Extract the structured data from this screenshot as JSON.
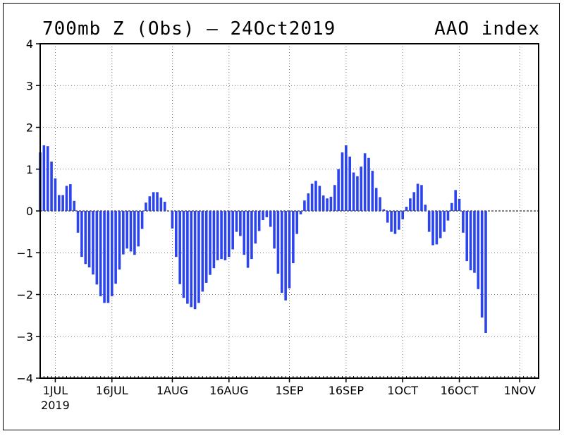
{
  "chart_data": {
    "type": "bar",
    "title": "700mb Z (Obs) — 24Oct2019",
    "subtitle": "AAO index",
    "xlabel": "",
    "ylabel": "",
    "ylim": [
      -4,
      4
    ],
    "yticks": [
      "−4",
      "−3",
      "−2",
      "−1",
      "0",
      "1",
      "2",
      "3",
      "4"
    ],
    "xticks": [
      {
        "date": "2019-07-01",
        "label": "1JUL"
      },
      {
        "date": "2019-07-16",
        "label": "16JUL"
      },
      {
        "date": "2019-08-01",
        "label": "1AUG"
      },
      {
        "date": "2019-08-16",
        "label": "16AUG"
      },
      {
        "date": "2019-09-01",
        "label": "1SEP"
      },
      {
        "date": "2019-09-16",
        "label": "16SEP"
      },
      {
        "date": "2019-10-01",
        "label": "1OCT"
      },
      {
        "date": "2019-10-16",
        "label": "16OCT"
      },
      {
        "date": "2019-11-01",
        "label": "1NOV"
      }
    ],
    "year_label": "2019",
    "xlim": [
      "2019-06-27",
      "2019-11-06"
    ],
    "grid": true,
    "bar_color": "#2b44ee",
    "series": [
      {
        "dates": [
          "2019-06-27",
          "2019-06-28",
          "2019-06-29",
          "2019-06-30",
          "2019-07-01",
          "2019-07-02",
          "2019-07-03",
          "2019-07-04",
          "2019-07-05",
          "2019-07-06",
          "2019-07-07",
          "2019-07-08",
          "2019-07-09",
          "2019-07-10",
          "2019-07-11",
          "2019-07-12",
          "2019-07-13",
          "2019-07-14",
          "2019-07-15",
          "2019-07-16",
          "2019-07-17",
          "2019-07-18",
          "2019-07-19",
          "2019-07-20",
          "2019-07-21",
          "2019-07-22",
          "2019-07-23",
          "2019-07-24",
          "2019-07-25",
          "2019-07-26",
          "2019-07-27",
          "2019-07-28",
          "2019-07-29",
          "2019-07-30",
          "2019-07-31",
          "2019-08-01",
          "2019-08-02",
          "2019-08-03",
          "2019-08-04",
          "2019-08-05",
          "2019-08-06",
          "2019-08-07",
          "2019-08-08",
          "2019-08-09",
          "2019-08-10",
          "2019-08-11",
          "2019-08-12",
          "2019-08-13",
          "2019-08-14",
          "2019-08-15",
          "2019-08-16",
          "2019-08-17",
          "2019-08-18",
          "2019-08-19",
          "2019-08-20",
          "2019-08-21",
          "2019-08-22",
          "2019-08-23",
          "2019-08-24",
          "2019-08-25",
          "2019-08-26",
          "2019-08-27",
          "2019-08-28",
          "2019-08-29",
          "2019-08-30",
          "2019-08-31",
          "2019-09-01",
          "2019-09-02",
          "2019-09-03",
          "2019-09-04",
          "2019-09-05",
          "2019-09-06",
          "2019-09-07",
          "2019-09-08",
          "2019-09-09",
          "2019-09-10",
          "2019-09-11",
          "2019-09-12",
          "2019-09-13",
          "2019-09-14",
          "2019-09-15",
          "2019-09-16",
          "2019-09-17",
          "2019-09-18",
          "2019-09-19",
          "2019-09-20",
          "2019-09-21",
          "2019-09-22",
          "2019-09-23",
          "2019-09-24",
          "2019-09-25",
          "2019-09-26",
          "2019-09-27",
          "2019-09-28",
          "2019-09-29",
          "2019-09-30",
          "2019-10-01",
          "2019-10-02",
          "2019-10-03",
          "2019-10-04",
          "2019-10-05",
          "2019-10-06",
          "2019-10-07",
          "2019-10-08",
          "2019-10-09",
          "2019-10-10",
          "2019-10-11",
          "2019-10-12",
          "2019-10-13",
          "2019-10-14",
          "2019-10-15",
          "2019-10-16",
          "2019-10-17",
          "2019-10-18",
          "2019-10-19",
          "2019-10-20",
          "2019-10-21",
          "2019-10-22",
          "2019-10-23",
          "2019-10-24"
        ],
        "values": [
          1.4,
          1.57,
          1.55,
          1.18,
          0.78,
          0.38,
          0.38,
          0.6,
          0.64,
          0.24,
          -0.52,
          -1.1,
          -1.27,
          -1.35,
          -1.52,
          -1.76,
          -2.04,
          -2.2,
          -2.2,
          -2.04,
          -1.74,
          -1.4,
          -1.04,
          -0.9,
          -0.97,
          -1.05,
          -0.85,
          -0.43,
          0.2,
          0.35,
          0.45,
          0.45,
          0.32,
          0.22,
          0.0,
          -0.42,
          -1.1,
          -1.75,
          -2.08,
          -2.22,
          -2.3,
          -2.35,
          -2.2,
          -1.93,
          -1.72,
          -1.53,
          -1.37,
          -1.18,
          -1.15,
          -1.18,
          -1.1,
          -0.92,
          -0.5,
          -0.6,
          -1.05,
          -1.36,
          -1.15,
          -0.78,
          -0.48,
          -0.22,
          -0.15,
          -0.38,
          -0.9,
          -1.5,
          -1.96,
          -2.14,
          -1.85,
          -1.25,
          -0.55,
          -0.08,
          0.25,
          0.42,
          0.65,
          0.72,
          0.6,
          0.37,
          0.3,
          0.34,
          0.62,
          1.0,
          1.4,
          1.57,
          1.3,
          0.92,
          0.83,
          1.06,
          1.38,
          1.27,
          0.96,
          0.55,
          0.33,
          0.04,
          -0.28,
          -0.5,
          -0.55,
          -0.45,
          -0.2,
          0.1,
          0.3,
          0.45,
          0.65,
          0.62,
          0.15,
          -0.5,
          -0.82,
          -0.8,
          -0.65,
          -0.5,
          -0.23,
          0.19,
          0.5,
          0.29,
          -0.52,
          -1.2,
          -1.42,
          -1.48,
          -1.87,
          -2.55,
          -2.92,
          0.0
        ]
      }
    ]
  }
}
